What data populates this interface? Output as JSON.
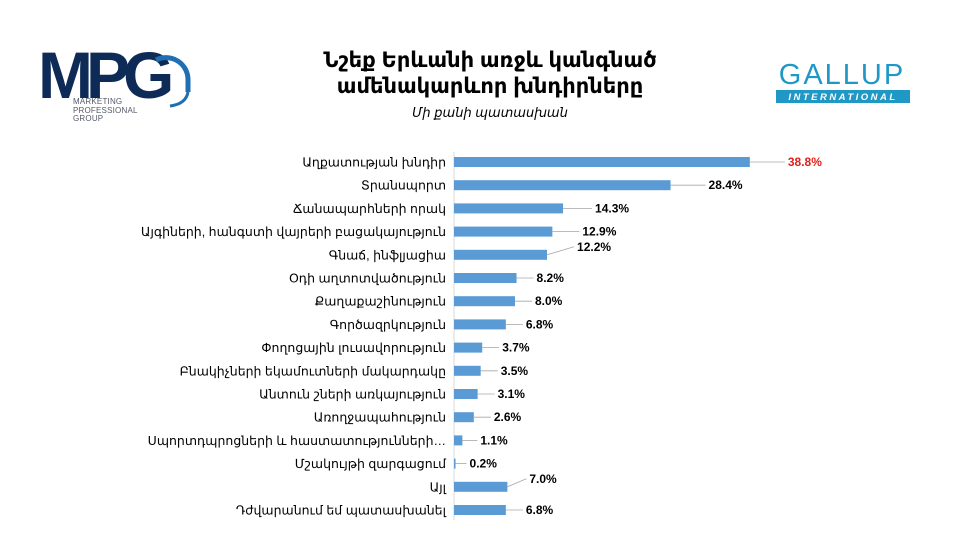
{
  "header": {
    "title_line1": "Նշեք Երևանի առջև կանգնած",
    "title_line2": "ամենակարևոր խնդիրները",
    "subtitle": "Մի քանի պատասխան"
  },
  "logos": {
    "mpg": {
      "text": "MPG",
      "caption_lines": [
        "MARKETING",
        "PROFESSIONAL",
        "GROUP"
      ]
    },
    "gallup": {
      "text": "GALLUP",
      "subtext": "INTERNATIONAL"
    }
  },
  "colors": {
    "bar": "#5b9bd5",
    "highlight_label": "#e0201b",
    "label_text": "#000000",
    "leader_line": "#a6a6a6",
    "gallup_blue": "#1f98c5",
    "mpg_navy": "#0e2a56",
    "mpg_blue": "#1f6fb2"
  },
  "chart_data": {
    "type": "bar",
    "orientation": "horizontal",
    "categories": [
      "Աղքատության խնդիր",
      "Տրանսպորտ",
      "Ճանապարհների որակ",
      "Այգիների, հանգստի վայրերի բացակայություն",
      "Գնաճ, ինֆլյացիա",
      "Օդի աղտոտվածություն",
      "Քաղաքաշինություն",
      "Գործազրկություն",
      "Փողոցային լուսավորություն",
      "Բնակիչների եկամուտների մակարդակը",
      "Անտուն շների առկայություն",
      "Առողջապահություն",
      "Սպորտդպրոցների և հաստատությունների…",
      "Մշակույթի զարգացում",
      "Այլ",
      "Դժվարանում եմ պատասխանել"
    ],
    "values": [
      38.8,
      28.4,
      14.3,
      12.9,
      12.2,
      8.2,
      8.0,
      6.8,
      3.7,
      3.5,
      3.1,
      2.6,
      1.1,
      0.2,
      7.0,
      6.8
    ],
    "value_labels": [
      "38.8%",
      "28.4%",
      "14.3%",
      "12.9%",
      "12.2%",
      "8.2%",
      "8.0%",
      "6.8%",
      "3.7%",
      "3.5%",
      "3.1%",
      "2.6%",
      "1.1%",
      "0.2%",
      "7.0%",
      "6.8%"
    ],
    "highlight_index": 0,
    "xlim": [
      0,
      40
    ],
    "grid": false,
    "legend": "none"
  }
}
